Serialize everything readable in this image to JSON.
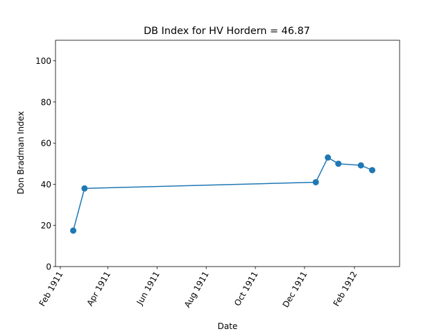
{
  "chart_data": {
    "type": "line",
    "title": "DB Index for HV Hordern = 46.87",
    "xlabel": "Date",
    "ylabel": "Don Bradman Index",
    "ylim": [
      0,
      110
    ],
    "xlim": [
      "1911-01-26",
      "1912-03-28"
    ],
    "x_ticks": [
      {
        "date": "1911-02-01",
        "label": "Feb 1911"
      },
      {
        "date": "1911-04-01",
        "label": "Apr 1911"
      },
      {
        "date": "1911-06-01",
        "label": "Jun 1911"
      },
      {
        "date": "1911-08-01",
        "label": "Aug 1911"
      },
      {
        "date": "1911-10-01",
        "label": "Oct 1911"
      },
      {
        "date": "1911-12-01",
        "label": "Dec 1911"
      },
      {
        "date": "1912-02-01",
        "label": "Feb 1912"
      }
    ],
    "y_ticks": [
      0,
      20,
      40,
      60,
      80,
      100
    ],
    "grid": false,
    "legend": "none",
    "series": [
      {
        "color": "#1f77b4",
        "marker": "circle",
        "points": [
          {
            "x": "1911-02-17",
            "y": 17.5
          },
          {
            "x": "1911-03-03",
            "y": 38.0
          },
          {
            "x": "1911-12-15",
            "y": 41.0
          },
          {
            "x": "1911-12-30",
            "y": 53.0
          },
          {
            "x": "1912-01-12",
            "y": 50.0
          },
          {
            "x": "1912-02-09",
            "y": 49.2
          },
          {
            "x": "1912-02-23",
            "y": 46.87
          }
        ]
      }
    ]
  }
}
